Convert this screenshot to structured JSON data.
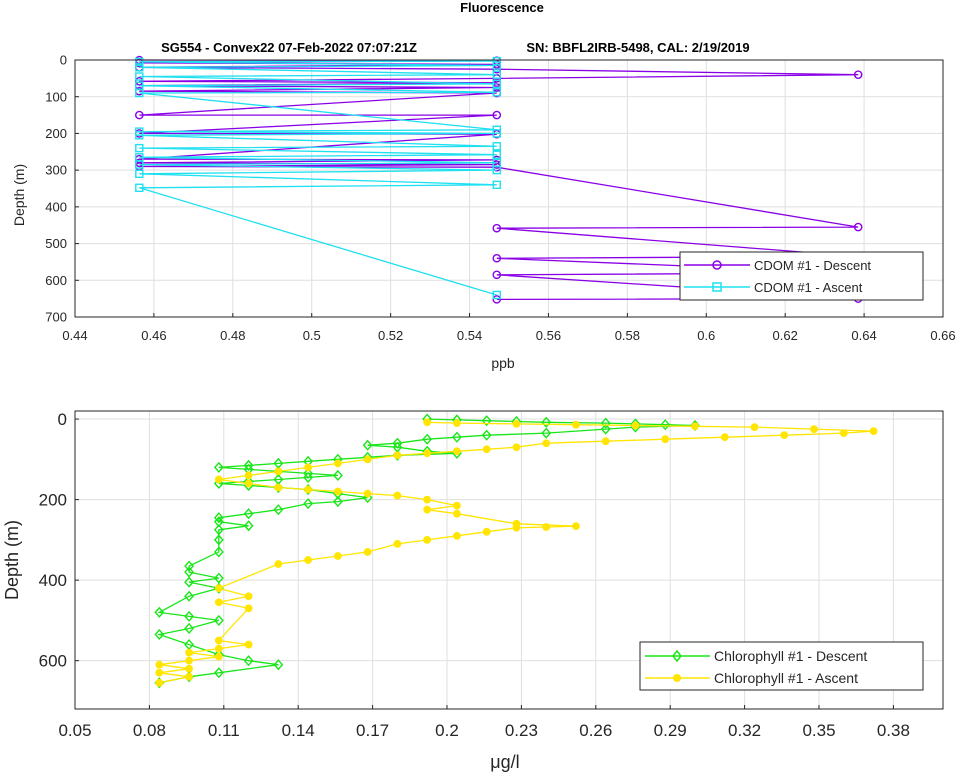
{
  "figure_title": "Fluorescence",
  "chart_data": [
    {
      "type": "line",
      "title_left": "SG554 - Convex22 07-Feb-2022 07:07:21Z",
      "title_right": "SN: BBFL2IRB-5498, CAL: 2/19/2019",
      "xlabel": "ppb",
      "ylabel": "Depth (m)",
      "xlim": [
        0.44,
        0.66
      ],
      "ylim": [
        0,
        700
      ],
      "y_reversed": true,
      "grid": true,
      "x_ticks": [
        "0.44",
        "0.46",
        "0.48",
        "0.5",
        "0.52",
        "0.54",
        "0.56",
        "0.58",
        "0.6",
        "0.62",
        "0.64",
        "0.66"
      ],
      "y_ticks": [
        "0",
        "100",
        "200",
        "300",
        "400",
        "500",
        "600",
        "700"
      ],
      "legend_position": "bottom-right",
      "series": [
        {
          "name": "CDOM #1 - Descent",
          "color": "#8A00E6",
          "marker": "circle",
          "x": [
            0.4563,
            0.5469,
            0.4563,
            0.5469,
            0.4563,
            0.5469,
            0.6385,
            0.5469,
            0.4563,
            0.5469,
            0.4563,
            0.5469,
            0.4563,
            0.5469,
            0.4563,
            0.5469,
            0.4563,
            0.5469,
            0.4563,
            0.5469,
            0.4563,
            0.5469,
            0.4563,
            0.5469,
            0.6385,
            0.5469,
            0.6385,
            0.5469,
            0.6385,
            0.5469,
            0.6385,
            0.5469
          ],
          "y": [
            0,
            2,
            8,
            12,
            20,
            25,
            40,
            50,
            58,
            62,
            70,
            75,
            85,
            90,
            150,
            150,
            200,
            202,
            270,
            272,
            280,
            285,
            290,
            292,
            455,
            458,
            535,
            540,
            580,
            585,
            650,
            652
          ]
        },
        {
          "name": "CDOM #1 - Ascent",
          "color": "#1EE0F0",
          "marker": "square",
          "x": [
            0.5469,
            0.4563,
            0.5469,
            0.4563,
            0.5469,
            0.4563,
            0.5469,
            0.4563,
            0.5469,
            0.4563,
            0.5469,
            0.4563,
            0.5469,
            0.4563,
            0.5469,
            0.4563,
            0.5469,
            0.4563,
            0.5469,
            0.4563,
            0.5469,
            0.4563,
            0.5469,
            0.4563,
            0.5469
          ],
          "y": [
            640,
            348,
            340,
            310,
            300,
            285,
            280,
            265,
            258,
            240,
            235,
            205,
            200,
            195,
            190,
            90,
            88,
            70,
            65,
            45,
            40,
            20,
            15,
            5,
            3
          ]
        }
      ]
    },
    {
      "type": "line",
      "xlabel": "μg/l",
      "ylabel": "Depth (m)",
      "xlim": [
        0.05,
        0.4
      ],
      "ylim": [
        -20,
        720
      ],
      "y_reversed": true,
      "grid": true,
      "x_ticks": [
        "0.05",
        "0.08",
        "0.11",
        "0.14",
        "0.17",
        "0.2",
        "0.23",
        "0.26",
        "0.29",
        "0.32",
        "0.35",
        "0.38"
      ],
      "y_ticks": [
        "0",
        "200",
        "400",
        "600"
      ],
      "legend_position": "bottom-right",
      "series": [
        {
          "name": "Chlorophyll #1 - Descent",
          "color": "#19E619",
          "marker": "diamond",
          "x": [
            0.192,
            0.204,
            0.216,
            0.228,
            0.24,
            0.264,
            0.276,
            0.288,
            0.3,
            0.276,
            0.264,
            0.24,
            0.216,
            0.204,
            0.192,
            0.18,
            0.168,
            0.18,
            0.192,
            0.204,
            0.18,
            0.168,
            0.156,
            0.144,
            0.132,
            0.12,
            0.108,
            0.12,
            0.132,
            0.144,
            0.156,
            0.144,
            0.132,
            0.12,
            0.108,
            0.12,
            0.132,
            0.144,
            0.156,
            0.168,
            0.156,
            0.144,
            0.132,
            0.12,
            0.108,
            0.108,
            0.12,
            0.108,
            0.108,
            0.108,
            0.096,
            0.096,
            0.108,
            0.096,
            0.108,
            0.096,
            0.084,
            0.096,
            0.108,
            0.096,
            0.084,
            0.096,
            0.108,
            0.12,
            0.132,
            0.108,
            0.096,
            0.084
          ],
          "y": [
            0,
            2,
            4,
            6,
            8,
            10,
            12,
            14,
            16,
            20,
            25,
            35,
            40,
            45,
            50,
            60,
            65,
            70,
            80,
            85,
            90,
            95,
            100,
            105,
            110,
            115,
            120,
            125,
            130,
            135,
            140,
            145,
            150,
            155,
            160,
            165,
            170,
            175,
            185,
            195,
            205,
            210,
            225,
            235,
            245,
            255,
            265,
            275,
            300,
            330,
            365,
            380,
            395,
            405,
            420,
            440,
            480,
            490,
            500,
            520,
            535,
            560,
            585,
            600,
            610,
            630,
            640,
            655
          ]
        },
        {
          "name": "Chlorophyll #1 - Ascent",
          "color": "#FFE500",
          "marker": "circle",
          "x": [
            0.084,
            0.096,
            0.084,
            0.096,
            0.084,
            0.096,
            0.108,
            0.096,
            0.108,
            0.12,
            0.108,
            0.12,
            0.108,
            0.12,
            0.108,
            0.132,
            0.144,
            0.156,
            0.168,
            0.18,
            0.192,
            0.204,
            0.216,
            0.228,
            0.24,
            0.252,
            0.228,
            0.204,
            0.192,
            0.204,
            0.192,
            0.18,
            0.168,
            0.156,
            0.144,
            0.132,
            0.12,
            0.108,
            0.12,
            0.132,
            0.144,
            0.156,
            0.168,
            0.18,
            0.192,
            0.204,
            0.216,
            0.228,
            0.24,
            0.264,
            0.288,
            0.312,
            0.336,
            0.36,
            0.372,
            0.348,
            0.324,
            0.3,
            0.276,
            0.252,
            0.228,
            0.204,
            0.192
          ],
          "y": [
            655,
            640,
            630,
            620,
            610,
            600,
            590,
            580,
            570,
            560,
            550,
            470,
            455,
            440,
            420,
            360,
            350,
            340,
            330,
            310,
            300,
            290,
            280,
            270,
            268,
            266,
            260,
            235,
            225,
            215,
            200,
            190,
            185,
            180,
            175,
            170,
            160,
            150,
            140,
            130,
            120,
            110,
            100,
            90,
            85,
            80,
            75,
            70,
            60,
            55,
            50,
            45,
            40,
            35,
            30,
            25,
            20,
            18,
            16,
            14,
            12,
            10,
            8
          ]
        }
      ]
    }
  ]
}
